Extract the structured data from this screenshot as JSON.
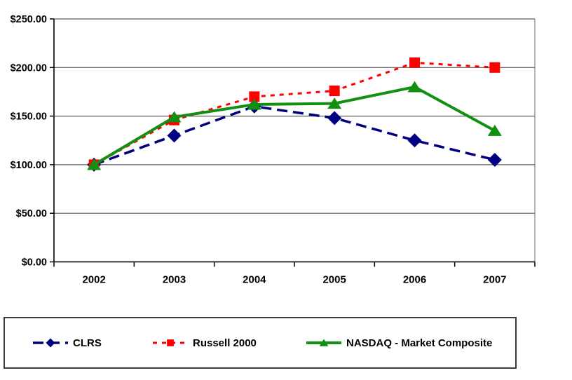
{
  "page": {
    "background": "#ffffff"
  },
  "chart_data": {
    "type": "line",
    "title": "",
    "xlabel": "",
    "ylabel": "",
    "categories": [
      "2002",
      "2003",
      "2004",
      "2005",
      "2006",
      "2007"
    ],
    "ylim": [
      0,
      250
    ],
    "yticks": [
      {
        "value": 250,
        "label": "$250.00"
      },
      {
        "value": 200,
        "label": "$200.00"
      },
      {
        "value": 150,
        "label": "$150.00"
      },
      {
        "value": 100,
        "label": "$100.00"
      },
      {
        "value": 50,
        "label": "$50.00"
      },
      {
        "value": 0,
        "label": "$0.00"
      }
    ],
    "grid": "horizontal",
    "legend_position": "bottom-left-box",
    "series": [
      {
        "name": "CLRS",
        "color": "#000080",
        "marker": "diamond",
        "line_style": "dashed",
        "dash": "15 8",
        "width": 3.5,
        "values": [
          100,
          130,
          160,
          148,
          125,
          105
        ]
      },
      {
        "name": "Russell 2000",
        "color": "#ff0000",
        "marker": "square",
        "line_style": "dotted",
        "dash": "6 7",
        "width": 3,
        "values": [
          100,
          146,
          170,
          176,
          205,
          200
        ]
      },
      {
        "name": "NASDAQ - Market Composite",
        "color": "#129012",
        "marker": "triangle",
        "line_style": "solid",
        "dash": "",
        "width": 4,
        "values": [
          100,
          149,
          162,
          163,
          180,
          135
        ]
      }
    ]
  }
}
